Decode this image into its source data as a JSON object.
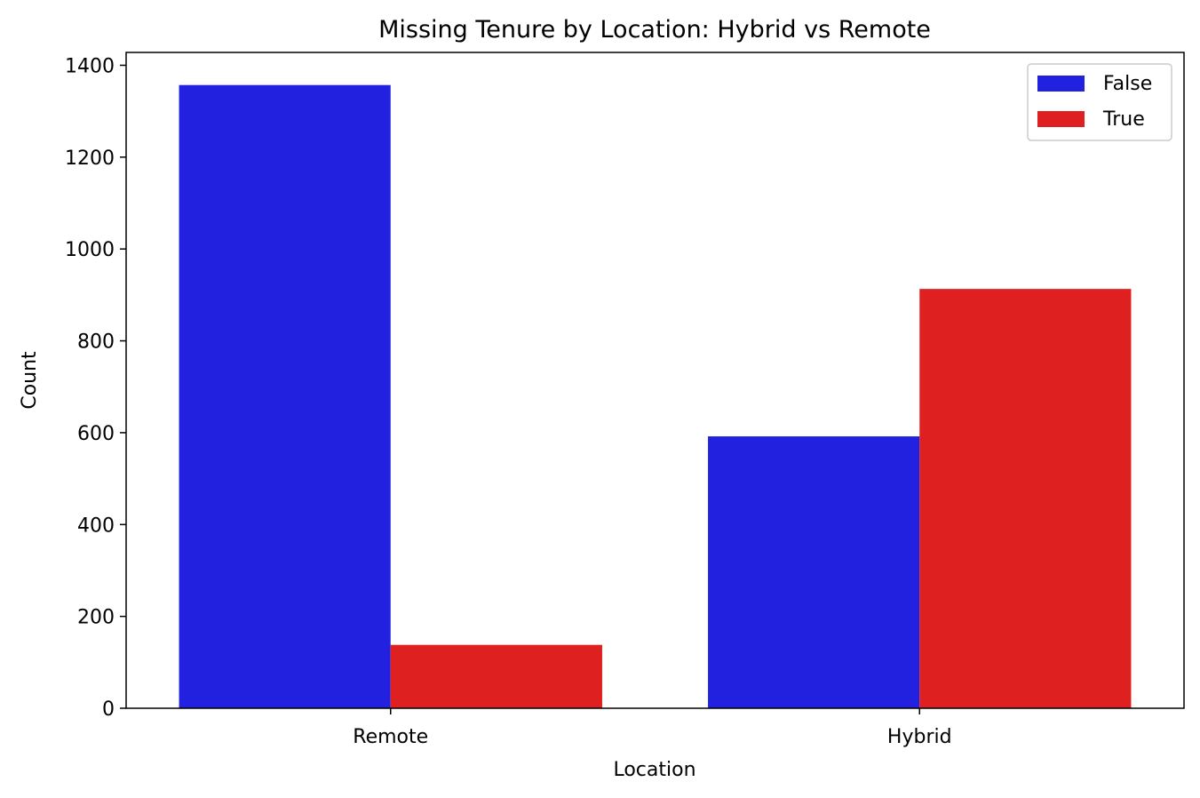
{
  "chart_data": {
    "type": "bar",
    "title": "Missing Tenure by Location: Hybrid vs Remote",
    "xlabel": "Location",
    "ylabel": "Count",
    "categories": [
      "Remote",
      "Hybrid"
    ],
    "series": [
      {
        "name": "False",
        "color": "#2121df",
        "values": [
          1357,
          592
        ]
      },
      {
        "name": "True",
        "color": "#df2020",
        "values": [
          138,
          913
        ]
      }
    ],
    "ylim": [
      0,
      1428
    ],
    "yticks": [
      0,
      200,
      400,
      600,
      800,
      1000,
      1200,
      1400
    ],
    "grid": false,
    "legend_position": "top-right"
  }
}
